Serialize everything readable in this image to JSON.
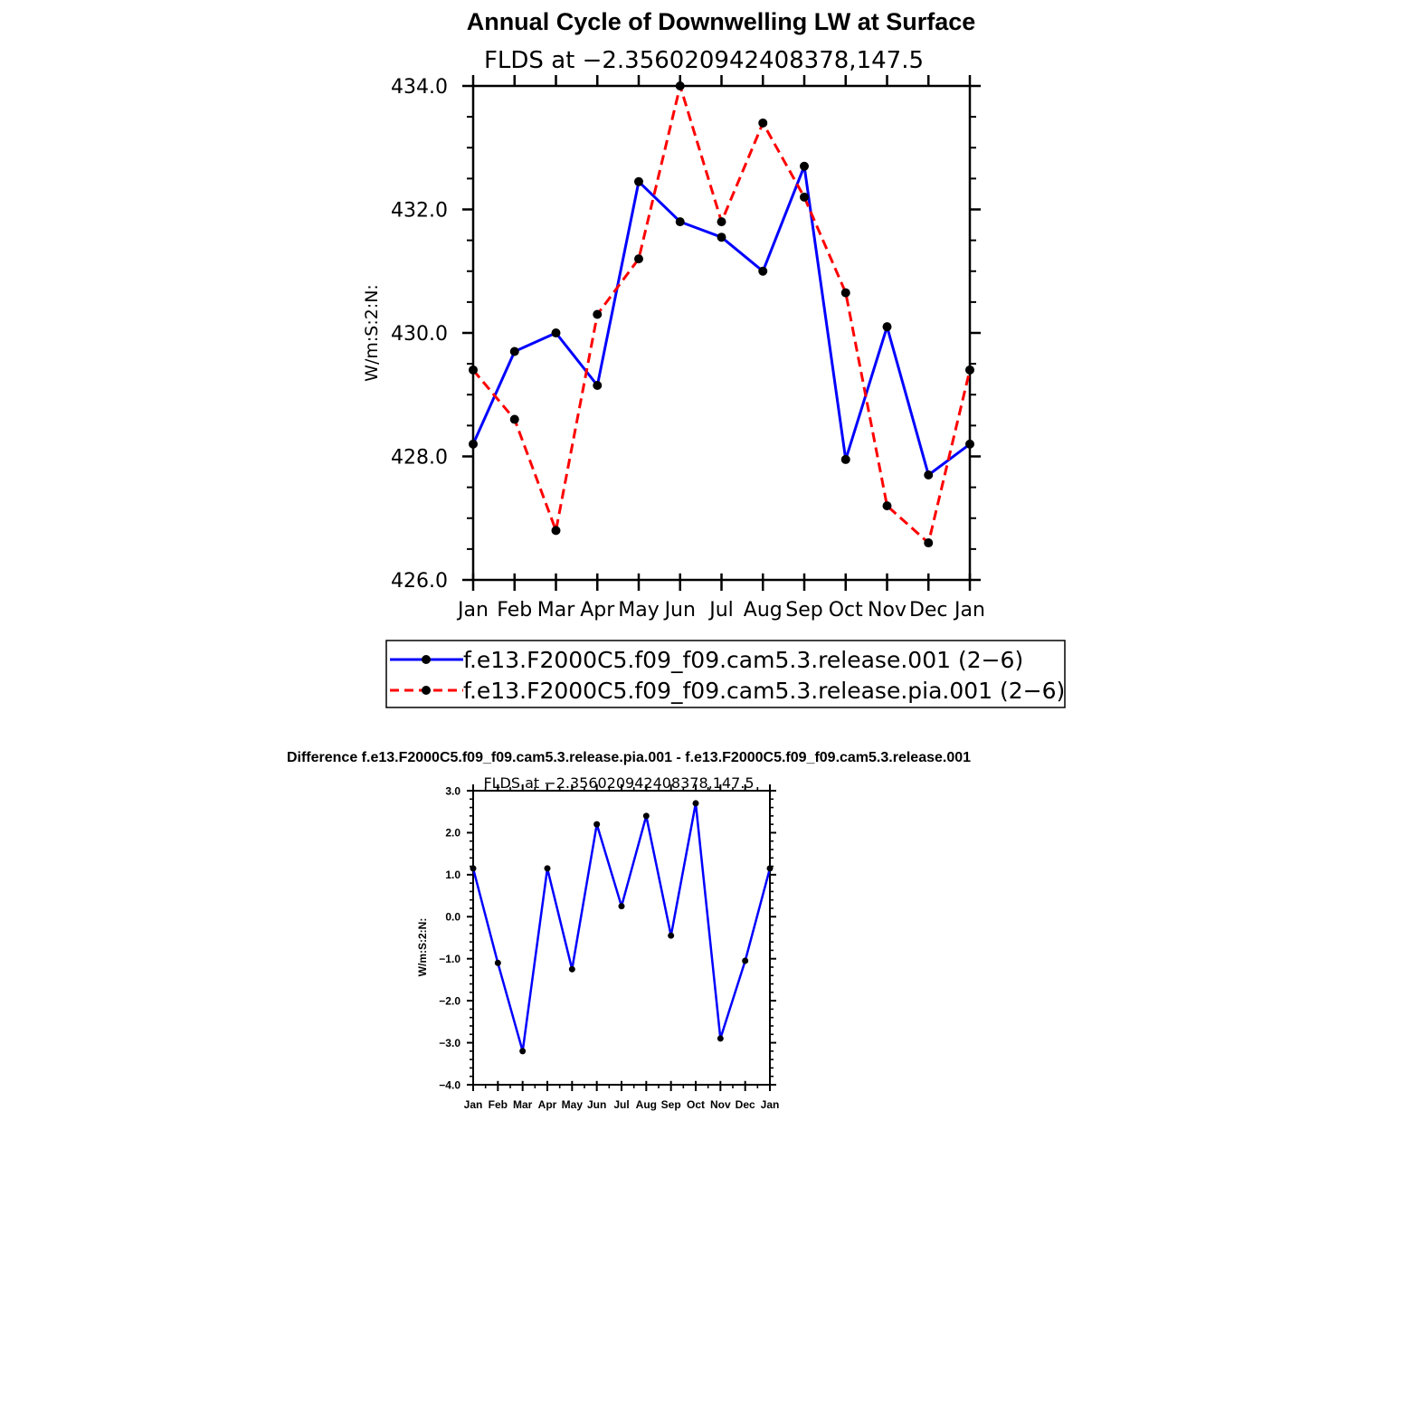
{
  "chart_data": [
    {
      "type": "line",
      "title": "Annual Cycle of Downwelling LW at Surface",
      "subtitle": "FLDS at −2.356020942408378,147.5",
      "ylabel": "W/m:S:2:N:",
      "xlabel": "",
      "categories": [
        "Jan",
        "Feb",
        "Mar",
        "Apr",
        "May",
        "Jun",
        "Jul",
        "Aug",
        "Sep",
        "Oct",
        "Nov",
        "Dec",
        "Jan"
      ],
      "ylim": [
        426.0,
        434.0
      ],
      "yticks": [
        "426.0",
        "428.0",
        "430.0",
        "432.0",
        "434.0"
      ],
      "grid": false,
      "legend_placement": "bottom",
      "series": [
        {
          "name": "f.e13.F2000C5.f09_f09.cam5.3.release.001 (2−6)",
          "color": "#0000ff",
          "style": "solid",
          "values": [
            428.2,
            429.7,
            430.0,
            429.15,
            432.45,
            431.8,
            431.55,
            431.0,
            432.7,
            427.95,
            430.1,
            427.7,
            428.2
          ]
        },
        {
          "name": "f.e13.F2000C5.f09_f09.cam5.3.release.pia.001 (2−6)",
          "color": "#ff0000",
          "style": "dashed",
          "values": [
            429.4,
            428.6,
            426.8,
            430.3,
            431.2,
            434.0,
            431.8,
            433.4,
            432.2,
            430.65,
            427.2,
            426.6,
            429.4
          ]
        }
      ]
    },
    {
      "type": "line",
      "title": "Difference f.e13.F2000C5.f09_f09.cam5.3.release.pia.001 - f.e13.F2000C5.f09_f09.cam5.3.release.001",
      "subtitle": "FLDS at −2.356020942408378,147.5",
      "ylabel": "W/m:S:2:N:",
      "xlabel": "",
      "categories": [
        "Jan",
        "Feb",
        "Mar",
        "Apr",
        "May",
        "Jun",
        "Jul",
        "Aug",
        "Sep",
        "Oct",
        "Nov",
        "Dec",
        "Jan"
      ],
      "ylim": [
        -4.0,
        3.0
      ],
      "yticks": [
        "−4.0",
        "−3.0",
        "−2.0",
        "−1.0",
        "0.0",
        "1.0",
        "2.0",
        "3.0"
      ],
      "grid": false,
      "series": [
        {
          "color": "#0000ff",
          "style": "solid",
          "values": [
            1.15,
            -1.1,
            -3.2,
            1.15,
            -1.25,
            2.2,
            0.25,
            2.4,
            -0.45,
            2.7,
            -2.9,
            -1.05,
            1.15
          ]
        }
      ]
    }
  ]
}
